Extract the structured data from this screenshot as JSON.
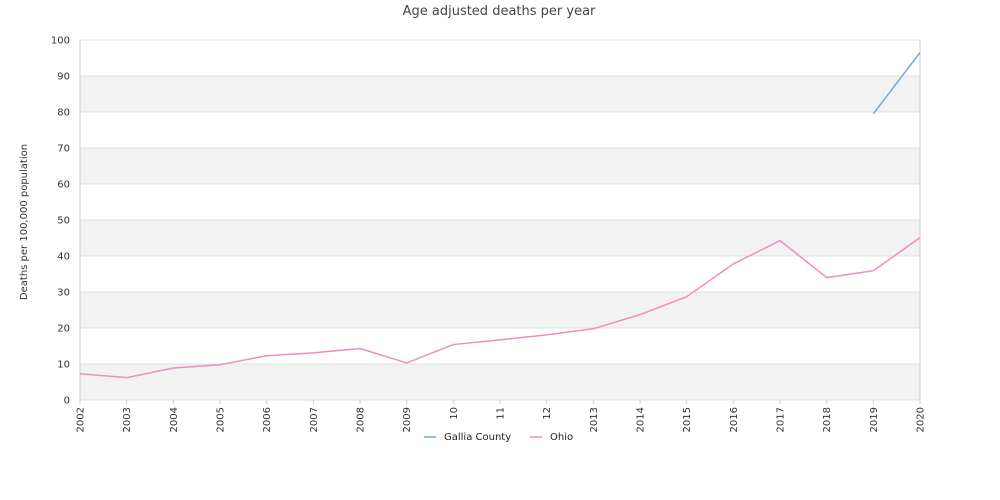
{
  "chart_data": {
    "type": "line",
    "title": "Age adjusted deaths per year",
    "xlabel": "",
    "ylabel": "Deaths per 100,000 population",
    "x": [
      "2002",
      "2003",
      "2004",
      "2005",
      "2006",
      "2007",
      "2008",
      "2009",
      "10",
      "11",
      "12",
      "2013",
      "2014",
      "2015",
      "2016",
      "2017",
      "2018",
      "2019",
      "2020"
    ],
    "ylim": [
      0,
      100
    ],
    "yticks": [
      0,
      10,
      20,
      30,
      40,
      50,
      60,
      70,
      80,
      90,
      100
    ],
    "grid": "horizontal alternating bands",
    "legend_position": "bottom-center",
    "series": [
      {
        "name": "Gallia County",
        "color": "#6fa8dc",
        "values": [
          null,
          null,
          null,
          null,
          null,
          null,
          null,
          null,
          null,
          null,
          null,
          null,
          null,
          null,
          null,
          null,
          null,
          79.5,
          96.5
        ]
      },
      {
        "name": "Ohio",
        "color": "#f28cc0",
        "values": [
          7.3,
          6.2,
          8.9,
          9.8,
          12.3,
          13.1,
          14.3,
          10.3,
          15.4,
          16.7,
          18.1,
          19.8,
          23.7,
          28.7,
          37.8,
          44.3,
          34.0,
          35.9,
          45.1
        ]
      }
    ]
  },
  "colors": {
    "band": "#f2f2f2",
    "gridline": "#e0e0e0",
    "axis": "#cccccc"
  }
}
